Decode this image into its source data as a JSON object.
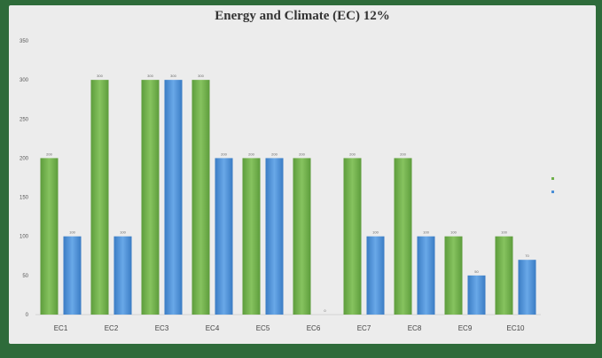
{
  "chart_data": {
    "type": "bar",
    "title": "Energy and Climate (EC) 12%",
    "xlabel": "",
    "ylabel": "",
    "categories": [
      "EC1",
      "EC2",
      "EC3",
      "EC4",
      "EC5",
      "EC6",
      "EC7",
      "EC8",
      "EC9",
      "EC10"
    ],
    "ylim": [
      0,
      350
    ],
    "yticks": [
      0,
      50,
      100,
      150,
      200,
      250,
      300,
      350
    ],
    "grid": false,
    "legend_position": "right",
    "series": [
      {
        "name": "",
        "color": "#6fb04a",
        "values": [
          200,
          300,
          300,
          300,
          200,
          200,
          200,
          200,
          100,
          100
        ],
        "labels": [
          "200",
          "300",
          "300",
          "300",
          "200",
          "200",
          "200",
          "200",
          "100",
          "100"
        ]
      },
      {
        "name": "",
        "color": "#4a8fd6",
        "values": [
          100,
          100,
          300,
          200,
          200,
          0,
          100,
          100,
          50,
          70
        ],
        "labels": [
          "100",
          "100",
          "300",
          "200",
          "200",
          "0",
          "100",
          "100",
          "50",
          "70"
        ]
      }
    ]
  }
}
